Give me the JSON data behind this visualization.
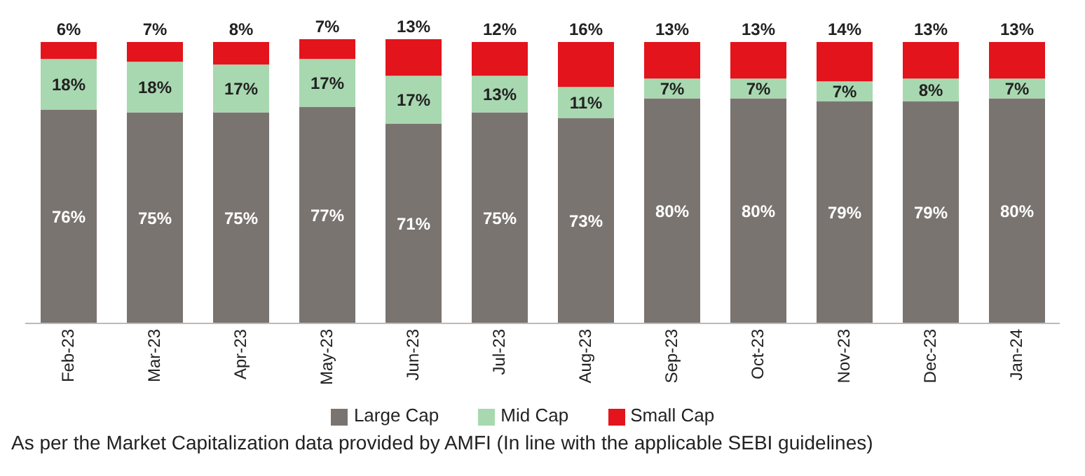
{
  "chart_data": {
    "type": "bar",
    "stacked": true,
    "legend": "bottom",
    "categories": [
      "Feb-23",
      "Mar-23",
      "Apr-23",
      "May-23",
      "Jun-23",
      "Jul-23",
      "Aug-23",
      "Sep-23",
      "Oct-23",
      "Nov-23",
      "Dec-23",
      "Jan-24"
    ],
    "series": [
      {
        "name": "Large Cap",
        "color": "#7a7470",
        "values": [
          76,
          75,
          75,
          77,
          71,
          75,
          73,
          80,
          80,
          79,
          79,
          80
        ],
        "value_labels": [
          "76%",
          "75%",
          "75%",
          "77%",
          "71%",
          "75%",
          "73%",
          "80%",
          "80%",
          "79%",
          "79%",
          "80%"
        ]
      },
      {
        "name": "Mid Cap",
        "color": "#a8d8b0",
        "values": [
          18,
          18,
          17,
          17,
          17,
          13,
          11,
          7,
          7,
          7,
          8,
          7
        ],
        "value_labels": [
          "18%",
          "18%",
          "17%",
          "17%",
          "17%",
          "13%",
          "11%",
          "7%",
          "7%",
          "7%",
          "8%",
          "7%"
        ]
      },
      {
        "name": "Small Cap",
        "color": "#e3141b",
        "values": [
          6,
          7,
          8,
          7,
          13,
          12,
          16,
          13,
          13,
          14,
          13,
          13
        ],
        "value_labels": [
          "6%",
          "7%",
          "8%",
          "7%",
          "13%",
          "12%",
          "16%",
          "13%",
          "13%",
          "14%",
          "13%",
          "13%"
        ]
      }
    ],
    "annotations": [
      "As per the Market Capitalization data provided by AMFI (In line with the applicable SEBI guidelines)"
    ]
  }
}
